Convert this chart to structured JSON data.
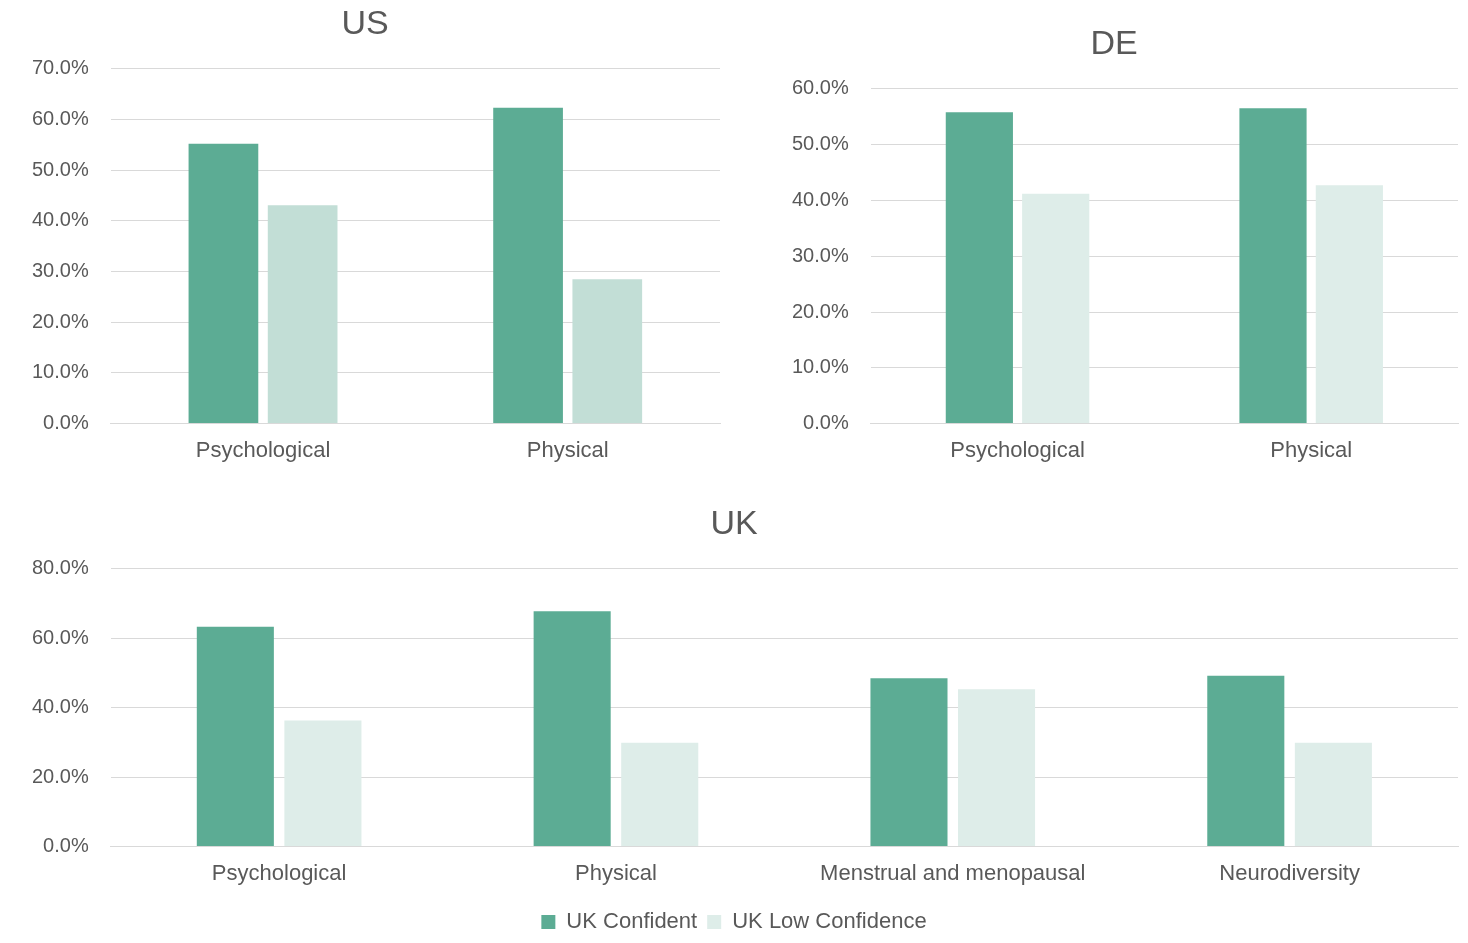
{
  "chart_data": [
    {
      "type": "bar",
      "title": "US",
      "categories": [
        "Psychological",
        "Physical"
      ],
      "series": [
        {
          "color": "#5cac94",
          "values": [
            55.2,
            62.3
          ]
        },
        {
          "color": "#c2ded6",
          "values": [
            43.1,
            28.5
          ]
        }
      ],
      "ylim": [
        0,
        70
      ],
      "yticks": [
        {
          "value": 0,
          "label": "0.0%"
        },
        {
          "value": 10,
          "label": "10.0%"
        },
        {
          "value": 20,
          "label": "20.0%"
        },
        {
          "value": 30,
          "label": "30.0%"
        },
        {
          "value": 40,
          "label": "40.0%"
        },
        {
          "value": 50,
          "label": "50.0%"
        },
        {
          "value": 60,
          "label": "60.0%"
        },
        {
          "value": 70,
          "label": "70.0%"
        }
      ],
      "grid": "y"
    },
    {
      "type": "bar",
      "title": "DE",
      "categories": [
        "Psychological",
        "Physical"
      ],
      "series": [
        {
          "color": "#5cac94",
          "values": [
            55.8,
            56.5
          ]
        },
        {
          "color": "#deede9",
          "values": [
            41.2,
            42.7
          ]
        }
      ],
      "ylim": [
        0,
        60
      ],
      "yticks": [
        {
          "value": 0,
          "label": "0.0%"
        },
        {
          "value": 10,
          "label": "10.0%"
        },
        {
          "value": 20,
          "label": "20.0%"
        },
        {
          "value": 30,
          "label": "30.0%"
        },
        {
          "value": 40,
          "label": "40.0%"
        },
        {
          "value": 50,
          "label": "50.0%"
        },
        {
          "value": 60,
          "label": "60.0%"
        }
      ],
      "grid": "y"
    },
    {
      "type": "bar",
      "title": "UK",
      "categories": [
        "Psychological",
        "Physical",
        "Menstrual and menopausal",
        "Neurodiversity"
      ],
      "series": [
        {
          "name": "UK Confident",
          "color": "#5cac94",
          "values": [
            63.3,
            67.8,
            48.5,
            49.2
          ]
        },
        {
          "name": "UK Low Confidence",
          "color": "#deede9",
          "values": [
            36.3,
            29.9,
            45.3,
            29.9
          ]
        }
      ],
      "ylim": [
        0,
        80
      ],
      "yticks": [
        {
          "value": 0,
          "label": "0.0%"
        },
        {
          "value": 20,
          "label": "20.0%"
        },
        {
          "value": 40,
          "label": "40.0%"
        },
        {
          "value": 60,
          "label": "60.0%"
        },
        {
          "value": 80,
          "label": "80.0%"
        }
      ],
      "grid": "y",
      "legend": "bottom"
    }
  ]
}
